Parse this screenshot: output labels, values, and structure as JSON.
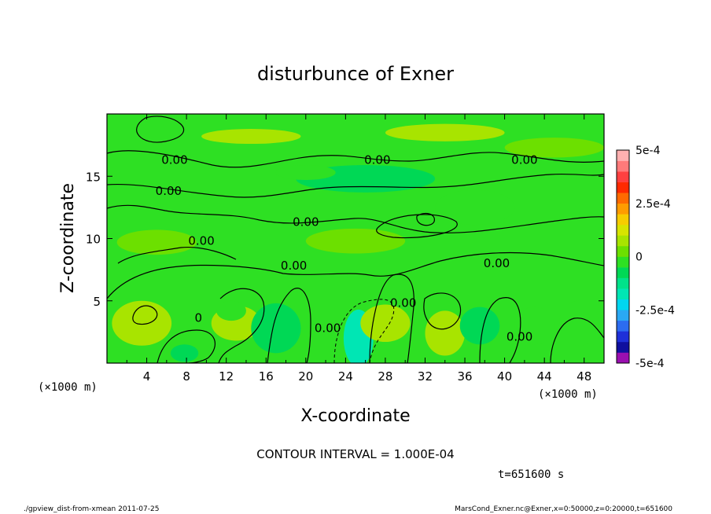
{
  "chart_data": {
    "type": "heatmap",
    "title": "disturbunce of Exner",
    "xlabel": "X-coordinate",
    "ylabel": "Z-coordinate",
    "x_unit": "(×1000 m)",
    "z_unit": "(×1000 m)",
    "xlim": [
      0,
      50
    ],
    "ylim": [
      0,
      20
    ],
    "x_ticks": [
      "4",
      "8",
      "12",
      "16",
      "20",
      "24",
      "28",
      "32",
      "36",
      "40",
      "44",
      "48"
    ],
    "y_ticks": [
      "5",
      "10",
      "15"
    ],
    "contour_interval": "CONTOUR INTERVAL = 1.000E-04",
    "time_label": "t=651600 s",
    "contour_labels": [
      {
        "text": "0.00",
        "x": 6.8,
        "z": 16.0
      },
      {
        "text": "0.00",
        "x": 27.2,
        "z": 16.0
      },
      {
        "text": "0.00",
        "x": 42.0,
        "z": 16.0
      },
      {
        "text": "0.00",
        "x": 6.2,
        "z": 13.5
      },
      {
        "text": "0.00",
        "x": 20.0,
        "z": 11.0
      },
      {
        "text": "0.00",
        "x": 9.5,
        "z": 9.5
      },
      {
        "text": "0.00",
        "x": 18.8,
        "z": 7.5
      },
      {
        "text": "0.00",
        "x": 39.2,
        "z": 7.7
      },
      {
        "text": "0.00",
        "x": 29.8,
        "z": 4.5
      },
      {
        "text": "0.00",
        "x": 22.2,
        "z": 2.5
      },
      {
        "text": "0.00",
        "x": 41.5,
        "z": 1.8
      },
      {
        "text": "0",
        "x": 9.2,
        "z": 3.3
      }
    ],
    "colorbar": {
      "range": [
        -0.0005,
        0.0005
      ],
      "tick_labels": [
        "5e-4",
        "2.5e-4",
        "0",
        "-2.5e-4",
        "-5e-4"
      ],
      "tick_values": [
        0.0005,
        0.00025,
        0,
        -0.00025,
        -0.0005
      ],
      "colors": [
        "#9a0fb0",
        "#0f0f9e",
        "#1e30d8",
        "#2c6cf0",
        "#2aa8f4",
        "#00d6f0",
        "#00e6b4",
        "#00e28a",
        "#00d855",
        "#2ee023",
        "#6ce000",
        "#a8e400",
        "#d8e400",
        "#f7cc00",
        "#ff9c00",
        "#ff6a00",
        "#ff2a00",
        "#ff4040",
        "#ff7a7a",
        "#ffb0b0"
      ]
    },
    "field_regions": [
      {
        "x": 14.5,
        "z": 18.2,
        "rx": 5,
        "rz": 0.6,
        "v": 5e-05
      },
      {
        "x": 34,
        "z": 18.5,
        "rx": 6,
        "rz": 0.7,
        "v": 6e-05
      },
      {
        "x": 45,
        "z": 17.3,
        "rx": 5,
        "rz": 0.8,
        "v": 4e-05
      },
      {
        "x": 26,
        "z": 14.8,
        "rx": 7,
        "rz": 1.1,
        "v": -7e-05
      },
      {
        "x": 20,
        "z": 15.3,
        "rx": 3,
        "rz": 0.6,
        "v": -4e-05
      },
      {
        "x": 37,
        "z": 12.5,
        "rx": 4,
        "rz": 1.4,
        "v": -5e-05
      },
      {
        "x": 25,
        "z": 9.8,
        "rx": 5,
        "rz": 1,
        "v": 4e-05
      },
      {
        "x": 5,
        "z": 9.7,
        "rx": 4,
        "rz": 1,
        "v": 4e-05
      },
      {
        "x": 3.5,
        "z": 3.2,
        "rx": 3,
        "rz": 1.8,
        "v": 6e-05
      },
      {
        "x": 13,
        "z": 3.2,
        "rx": 2.5,
        "rz": 1.4,
        "v": 5e-05
      },
      {
        "x": 17,
        "z": 2.8,
        "rx": 2.5,
        "rz": 2,
        "v": -6e-05
      },
      {
        "x": 25.3,
        "z": 2.0,
        "rx": 1.5,
        "rz": 2.3,
        "v": -0.00018
      },
      {
        "x": 28,
        "z": 3.2,
        "rx": 2.5,
        "rz": 1.5,
        "v": 5e-05
      },
      {
        "x": 34,
        "z": 2.4,
        "rx": 2,
        "rz": 1.8,
        "v": 6e-05
      },
      {
        "x": 37.5,
        "z": 3.0,
        "rx": 2,
        "rz": 1.5,
        "v": -7e-05
      },
      {
        "x": 43,
        "z": 3.0,
        "rx": 2,
        "rz": 1.5,
        "v": -5e-05
      },
      {
        "x": 47.5,
        "z": 3.2,
        "rx": 2,
        "rz": 1.8,
        "v": -4e-05
      },
      {
        "x": 7.8,
        "z": 0.8,
        "rx": 1.4,
        "rz": 0.7,
        "v": -7e-05
      },
      {
        "x": 12.5,
        "z": 4.2,
        "rx": 1.5,
        "rz": 0.8,
        "v": -4e-05
      }
    ]
  },
  "footer": {
    "left": "./gpview_dist-from-xmean  2011-07-25",
    "right": "MarsCond_Exner.nc@Exner,x=0:50000,z=0:20000,t=651600"
  }
}
